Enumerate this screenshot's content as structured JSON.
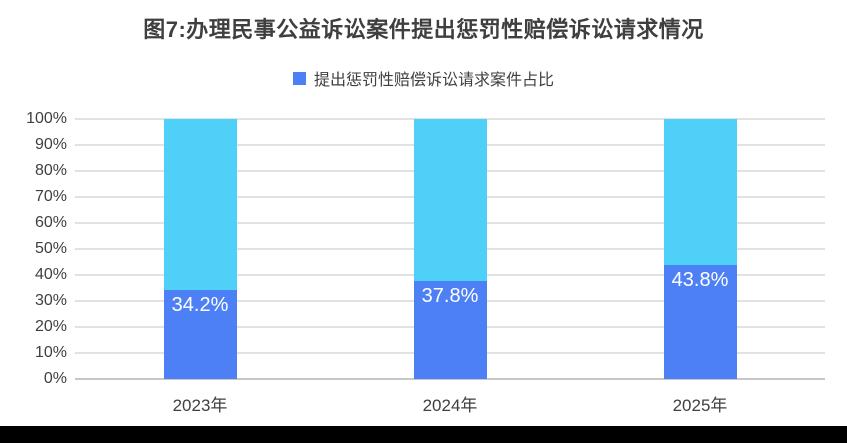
{
  "window": {
    "background": "#ffffff"
  },
  "chart": {
    "title": "图7:办理民事公益诉讼案件提出惩罚性赔偿诉讼请求情况",
    "legend_label": "提出惩罚性赔偿诉讼请求案件占比"
  },
  "chart_data": {
    "type": "bar",
    "stacked": true,
    "stack_total": 100,
    "title": "图7:办理民事公益诉讼案件提出惩罚性赔偿诉讼请求情况",
    "legend_entries": [
      "提出惩罚性赔偿诉讼请求案件占比"
    ],
    "legend_position": "top",
    "categories": [
      "2023年",
      "2024年",
      "2025年"
    ],
    "series": [
      {
        "name": "提出惩罚性赔偿诉讼请求案件占比",
        "values": [
          34.2,
          37.8,
          43.8
        ],
        "value_labels": [
          "34.2%",
          "37.8%",
          "43.8%"
        ],
        "color": "#4e80f5",
        "label_color": "#ffffff",
        "label_position": "inside-end"
      },
      {
        "name": "",
        "values": [
          65.8,
          62.2,
          56.2
        ],
        "value_labels": [
          "",
          "",
          ""
        ],
        "color": "#4fd0f9",
        "note": "unlabeled remainder segment filling stack to 100%"
      }
    ],
    "xlabel": "",
    "ylabel": "",
    "ylim": [
      0,
      100
    ],
    "y_ticks": [
      "0%",
      "10%",
      "20%",
      "30%",
      "40%",
      "50%",
      "60%",
      "70%",
      "80%",
      "90%",
      "100%"
    ],
    "y_tick_step": 10,
    "grid": true,
    "gridline_color": "#e2e2e2",
    "axis_line_color": "#c8c8c8"
  },
  "colors": {
    "series_blue": "#4e80f5",
    "series_cyan": "#4fd0f9",
    "title_text": "#3f3f3f",
    "axis_text": "#404040",
    "value_label_text": "#ffffff",
    "bottom_bar": "#000000"
  }
}
